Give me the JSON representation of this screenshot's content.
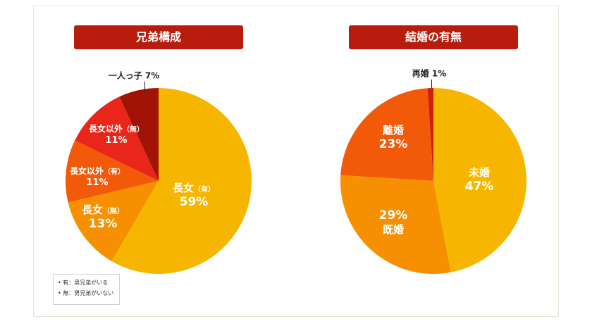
{
  "titles": {
    "left": "兄弟構成",
    "right": "結婚の有無"
  },
  "chart_data": [
    {
      "type": "pie",
      "title": "兄弟構成",
      "slices": [
        {
          "label": "長女",
          "sub": "（有）",
          "value": 59,
          "value_text": "59%",
          "color": "#f6b600"
        },
        {
          "label": "長女",
          "sub": "（無）",
          "value": 13,
          "value_text": "13%",
          "color": "#f69000"
        },
        {
          "label": "長女以外",
          "sub": "（有）",
          "value": 11,
          "value_text": "11%",
          "color": "#f25a0a"
        },
        {
          "label": "長女以外",
          "sub": "（無）",
          "value": 11,
          "value_text": "11%",
          "color": "#e8261a"
        },
        {
          "label": "一人っ子",
          "sub": "",
          "value": 7,
          "value_text": "7%",
          "color": "#a11405"
        }
      ]
    },
    {
      "type": "pie",
      "title": "結婚の有無",
      "slices": [
        {
          "label": "未婚",
          "value": 47,
          "value_text": "47%",
          "color": "#f6b600"
        },
        {
          "label": "既婚",
          "value": 29,
          "value_text": "29%",
          "color": "#f69000"
        },
        {
          "label": "離婚",
          "value": 23,
          "value_text": "23%",
          "color": "#f25a0a"
        },
        {
          "label": "再婚",
          "value": 1,
          "value_text": "1%",
          "color": "#cf1f10"
        }
      ]
    }
  ],
  "legend": {
    "items": [
      "有：男兄弟がいる",
      "無：男兄弟がいない"
    ]
  }
}
